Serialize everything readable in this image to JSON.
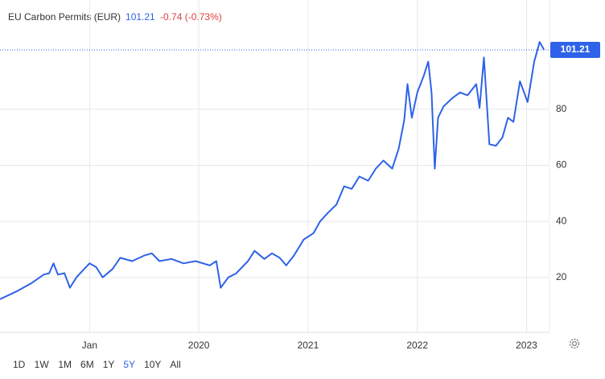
{
  "chart_data": {
    "type": "line",
    "title": "EU Carbon Permits (EUR)",
    "last_price": 101.21,
    "change": "-0.74 (-0.73%)",
    "x": [
      2018.18,
      2018.33,
      2018.47,
      2018.58,
      2018.63,
      2018.67,
      2018.71,
      2018.77,
      2018.82,
      2018.88,
      2018.95,
      2019.0,
      2019.06,
      2019.12,
      2019.21,
      2019.28,
      2019.39,
      2019.5,
      2019.57,
      2019.64,
      2019.75,
      2019.86,
      2019.97,
      2020.1,
      2020.16,
      2020.2,
      2020.27,
      2020.34,
      2020.45,
      2020.51,
      2020.6,
      2020.67,
      2020.74,
      2020.8,
      2020.87,
      2020.96,
      2021.05,
      2021.11,
      2021.18,
      2021.26,
      2021.33,
      2021.4,
      2021.47,
      2021.55,
      2021.62,
      2021.69,
      2021.77,
      2021.83,
      2021.88,
      2021.91,
      2021.95,
      2022.0,
      2022.06,
      2022.1,
      2022.13,
      2022.16,
      2022.19,
      2022.24,
      2022.32,
      2022.39,
      2022.46,
      2022.54,
      2022.57,
      2022.61,
      2022.66,
      2022.72,
      2022.78,
      2022.83,
      2022.88,
      2022.94,
      2023.01,
      2023.07,
      2023.12,
      2023.16
    ],
    "series": [
      {
        "name": "EU Carbon Permits",
        "color": "#2e62e8",
        "values": [
          12.2,
          15,
          18,
          21,
          21.5,
          25,
          21,
          21.5,
          16.3,
          20,
          23,
          25,
          23.7,
          20,
          23,
          27,
          25.8,
          27.8,
          28.6,
          25.8,
          26.6,
          25,
          25.8,
          24.3,
          25.8,
          16.3,
          20,
          21.4,
          25.8,
          29.5,
          26.6,
          28.6,
          27,
          24.3,
          27.8,
          33.5,
          35.8,
          40,
          43,
          46,
          52.5,
          51.6,
          56,
          54.5,
          58.8,
          61.7,
          58.8,
          66,
          76,
          89,
          77,
          86,
          92,
          97,
          86,
          58.8,
          77,
          81,
          84,
          86,
          85,
          89,
          80.5,
          98.5,
          67.5,
          67,
          70,
          77,
          75.5,
          90,
          82.6,
          97,
          104,
          101.21
        ]
      }
    ],
    "xlim": [
      2018.18,
      2023.21
    ],
    "xticks": [
      {
        "value": 2019,
        "label": "Jan"
      },
      2020,
      2021,
      2022,
      2023
    ],
    "ylim": [
      0.4,
      119
    ],
    "yticks": [
      20,
      40,
      60,
      80
    ],
    "grid": true,
    "range_buttons": [
      "1D",
      "1W",
      "1M",
      "6M",
      "1Y",
      "5Y",
      "10Y",
      "All"
    ],
    "active_range": "5Y"
  }
}
